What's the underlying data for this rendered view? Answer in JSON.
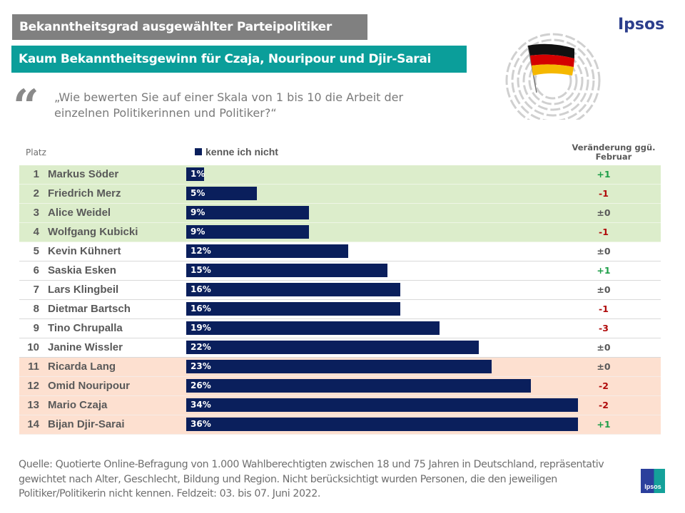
{
  "header": {
    "title": "Bekanntheitsgrad ausgewählter Parteipolitiker",
    "subtitle": "Kaum Bekanntheitsgewinn für Czaja, Nouripour und Djir-Sarai",
    "brand": "Ipsos"
  },
  "question": "„Wie bewerten Sie auf einer Skala von 1 bis 10 die Arbeit der einzelnen Politikerinnen und Politiker?“",
  "table_headers": {
    "rank": "Platz",
    "change_line1": "Veränderung ggü.",
    "change_line2": "Februar"
  },
  "colors": {
    "bar": "#0a1f5c",
    "positive": "#1e9e48",
    "negative": "#b00b0b",
    "neutral": "#595959",
    "top_group": "#dcedcb",
    "bottom_group": "#fde0d0"
  },
  "chart_data": {
    "type": "bar",
    "title": "Bekanntheitsgrad ausgewählter Parteipolitiker",
    "subtitle": "Kaum Bekanntheitsgewinn für Czaja, Nouripour und Djir-Sarai",
    "legend": [
      "kenne ich nicht"
    ],
    "legend_position": "top",
    "unit": "%",
    "categories": [
      "Markus Söder",
      "Friedrich Merz",
      "Alice Weidel",
      "Wolfgang Kubicki",
      "Kevin Kühnert",
      "Saskia Esken",
      "Lars Klingbeil",
      "Dietmar Bartsch",
      "Tino Chrupalla",
      "Janine Wissler",
      "Ricarda Lang",
      "Omid Nouripour",
      "Mario Czaja",
      "Bijan Djir-Sarai"
    ],
    "series": [
      {
        "name": "kenne ich nicht",
        "values": [
          1,
          5,
          9,
          9,
          12,
          15,
          16,
          16,
          19,
          22,
          23,
          26,
          34,
          36
        ]
      }
    ],
    "ranks": [
      1,
      2,
      3,
      4,
      5,
      6,
      7,
      8,
      9,
      10,
      11,
      12,
      13,
      14
    ],
    "value_labels": [
      "1%",
      "5%",
      "9%",
      "9%",
      "12%",
      "15%",
      "16%",
      "16%",
      "19%",
      "22%",
      "23%",
      "26%",
      "34%",
      "36%"
    ],
    "change_vs_february": [
      "+1",
      "-1",
      "±0",
      "-1",
      "±0",
      "+1",
      "±0",
      "-1",
      "-3",
      "±0",
      "±0",
      "-2",
      "-2",
      "+1"
    ],
    "row_groups": [
      "top",
      "top",
      "top",
      "top",
      "none",
      "none",
      "none",
      "none",
      "none",
      "none",
      "bottom",
      "bottom",
      "bottom",
      "bottom"
    ],
    "xlim": [
      0,
      30
    ]
  },
  "source": "Quelle: Quotierte Online-Befragung von 1.000 Wahlberechtigten zwischen 18 und 75 Jahren in Deutschland, repräsentativ gewichtet nach Alter,  Geschlecht, Bildung und Region. Nicht berücksichtigt wurden Personen, die den jeweiligen Politiker/Politikerin nicht kennen. Feldzeit: 03. bis 07. Juni 2022.",
  "footer_logo": "Ipsos"
}
